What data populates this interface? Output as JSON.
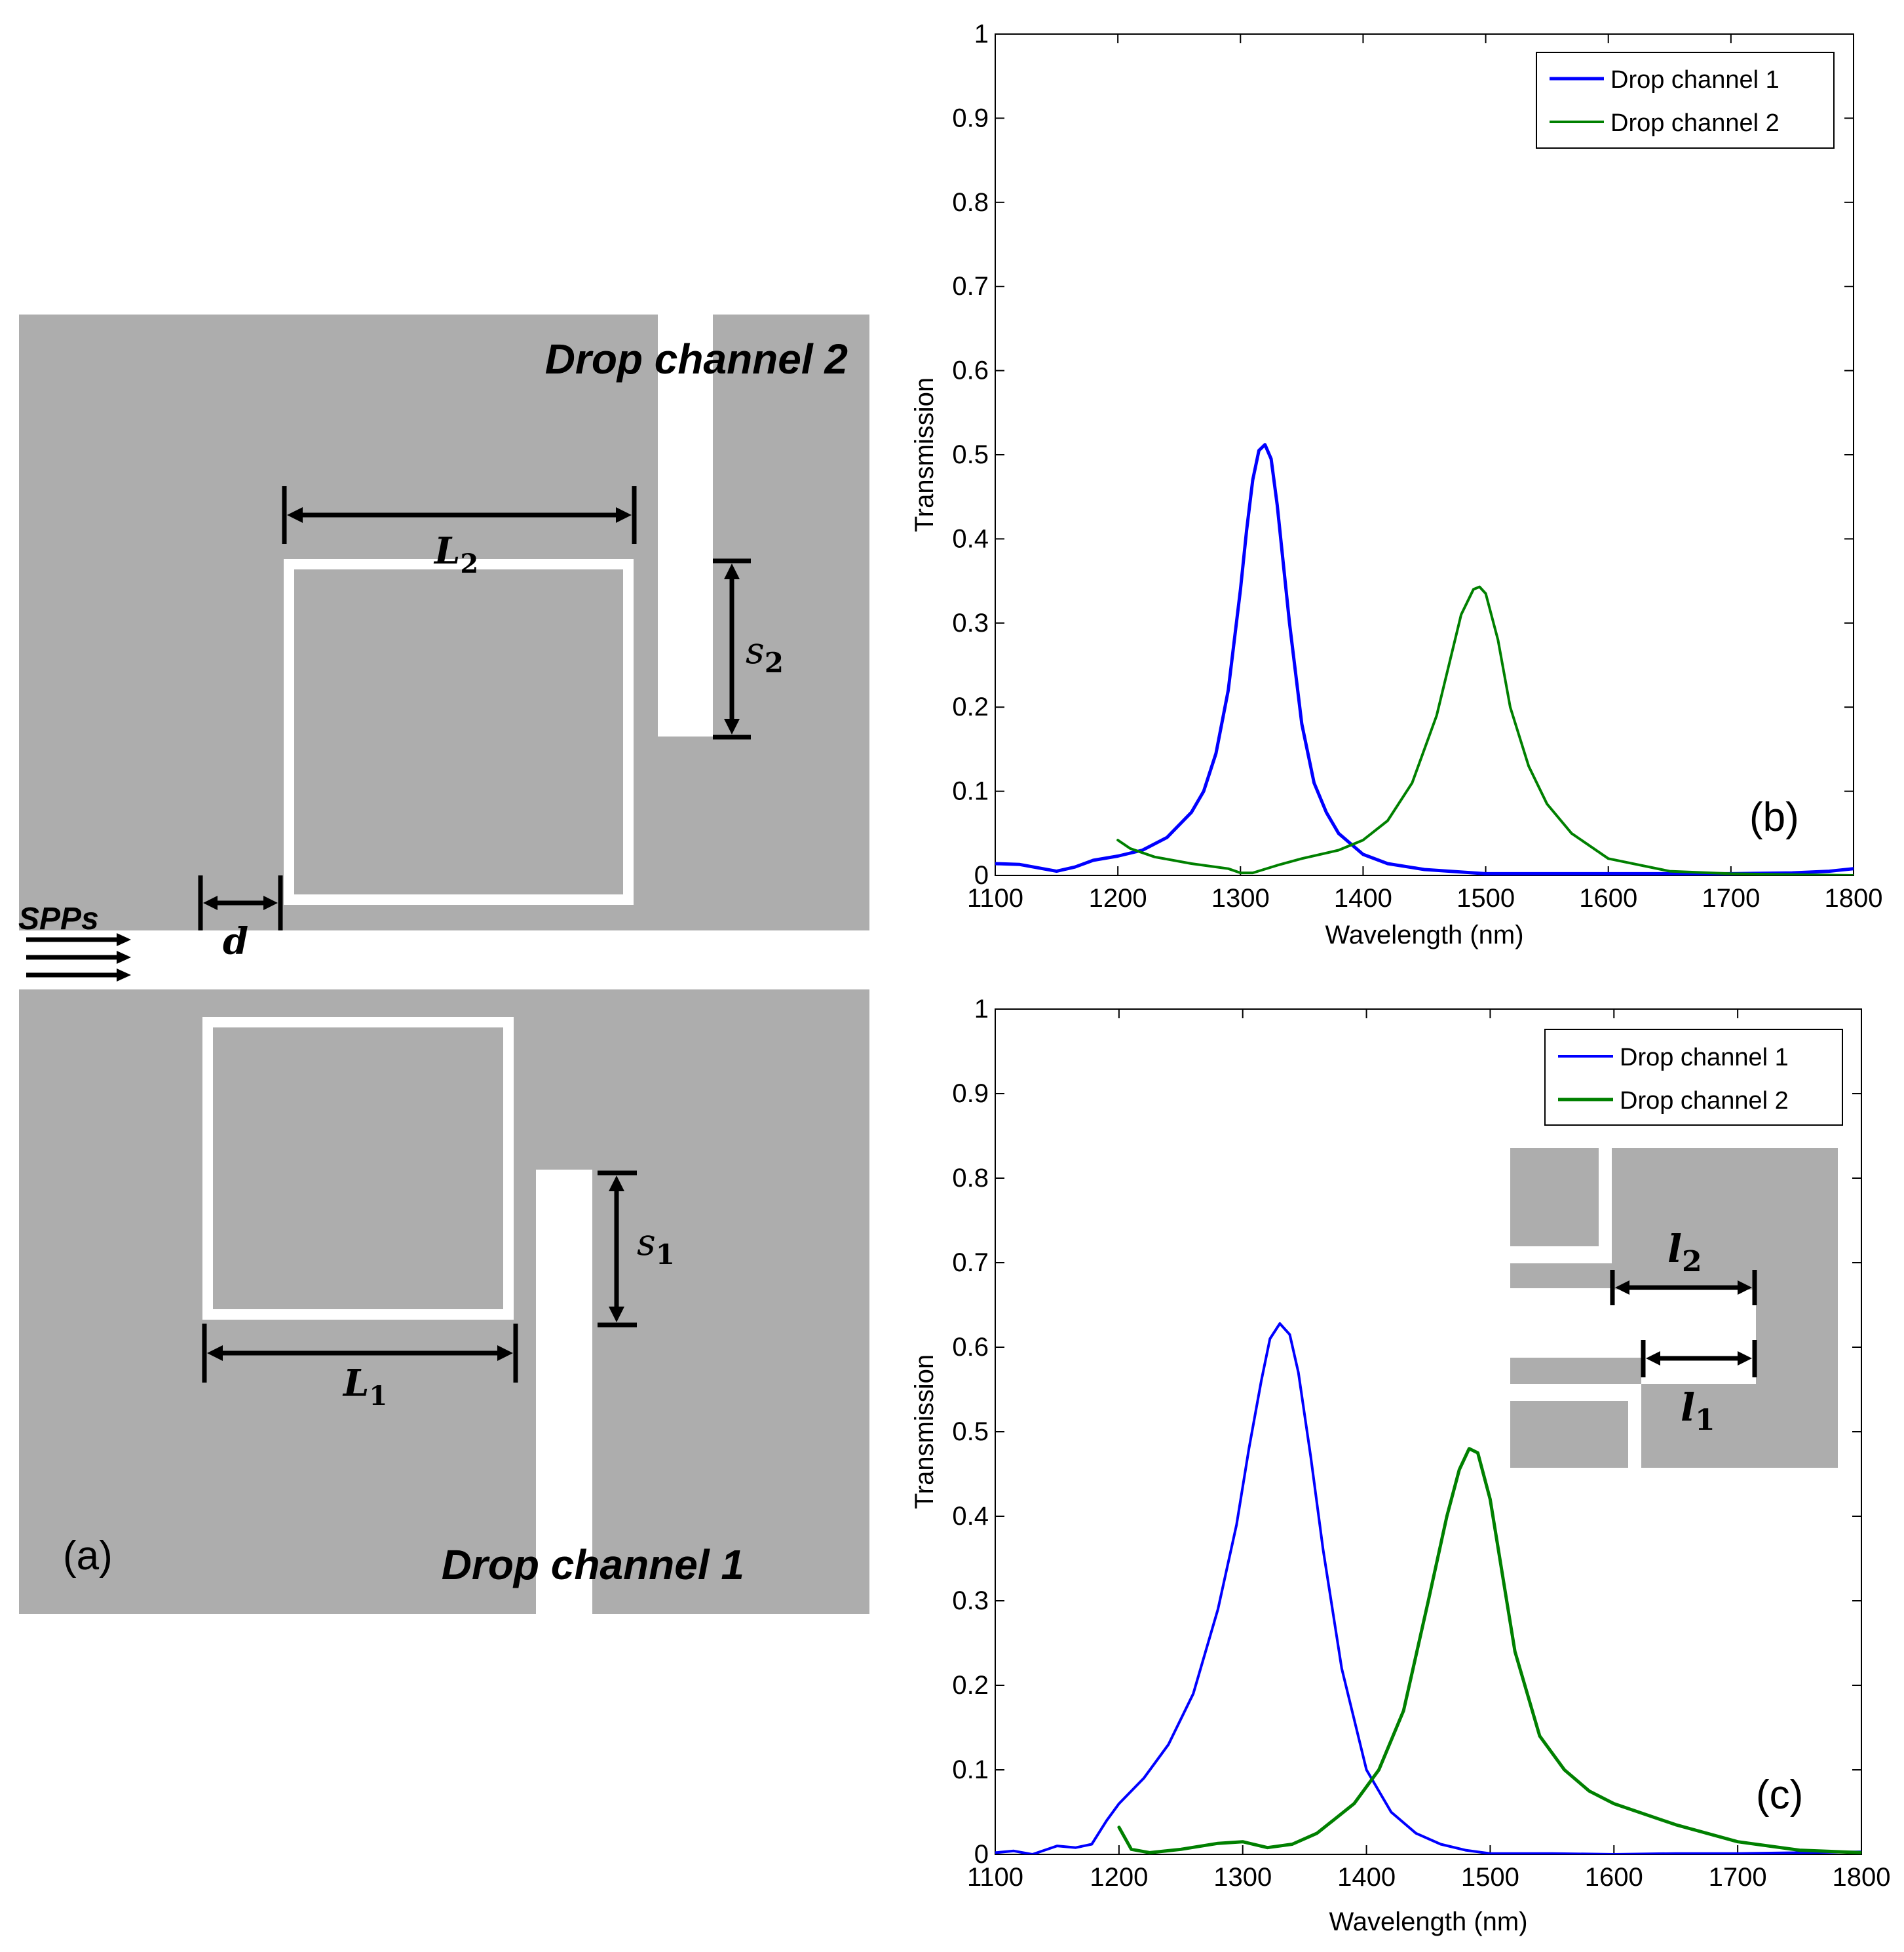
{
  "schematic": {
    "panel_label": "(a)",
    "drop_channel_2_label": "Drop channel 2",
    "drop_channel_1_label": "Drop channel 1",
    "spps_label": "SPPs",
    "L2": {
      "main": "L",
      "sub": "2"
    },
    "S2": {
      "main": "s",
      "sub": "2"
    },
    "L1": {
      "main": "L",
      "sub": "1"
    },
    "S1": {
      "main": "s",
      "sub": "1"
    },
    "d": "d",
    "colors": {
      "metal": "#adadad",
      "dielectric": "#ffffff",
      "dimension": "#000000"
    }
  },
  "inset": {
    "l2": {
      "main": "l",
      "sub": "2"
    },
    "l1": {
      "main": "l",
      "sub": "1"
    }
  },
  "chart_data": [
    {
      "type": "line",
      "panel_label": "(b)",
      "xlabel": "Wavelength (nm)",
      "ylabel": "Transmission",
      "xlim": [
        1100,
        1800
      ],
      "ylim": [
        0,
        1
      ],
      "xticks": [
        "1100",
        "1200",
        "1300",
        "1400",
        "1500",
        "1600",
        "1700",
        "1800"
      ],
      "yticks": [
        "0",
        "0.1",
        "0.2",
        "0.3",
        "0.4",
        "0.5",
        "0.6",
        "0.7",
        "0.8",
        "0.9",
        "1"
      ],
      "legend_position": "top-right",
      "series": [
        {
          "name": "Drop channel 1",
          "color": "#0000ff",
          "x": [
            1100,
            1120,
            1135,
            1150,
            1165,
            1180,
            1200,
            1220,
            1240,
            1260,
            1270,
            1280,
            1290,
            1300,
            1305,
            1310,
            1315,
            1320,
            1325,
            1330,
            1340,
            1350,
            1360,
            1370,
            1380,
            1400,
            1420,
            1450,
            1500,
            1550,
            1600,
            1650,
            1700,
            1750,
            1780,
            1800
          ],
          "y": [
            0.014,
            0.013,
            0.009,
            0.005,
            0.01,
            0.018,
            0.023,
            0.03,
            0.045,
            0.075,
            0.1,
            0.145,
            0.22,
            0.34,
            0.41,
            0.47,
            0.505,
            0.512,
            0.495,
            0.44,
            0.3,
            0.18,
            0.11,
            0.075,
            0.05,
            0.025,
            0.014,
            0.007,
            0.002,
            0.002,
            0.002,
            0.002,
            0.002,
            0.003,
            0.005,
            0.008
          ]
        },
        {
          "name": "Drop channel 2",
          "color": "#008000",
          "x": [
            1200,
            1210,
            1230,
            1260,
            1290,
            1300,
            1310,
            1330,
            1350,
            1380,
            1400,
            1420,
            1440,
            1460,
            1470,
            1480,
            1490,
            1495,
            1500,
            1510,
            1520,
            1535,
            1550,
            1570,
            1600,
            1650,
            1700,
            1750,
            1800
          ],
          "y": [
            0.042,
            0.032,
            0.022,
            0.014,
            0.008,
            0.003,
            0.003,
            0.012,
            0.02,
            0.03,
            0.042,
            0.065,
            0.11,
            0.19,
            0.25,
            0.31,
            0.34,
            0.343,
            0.335,
            0.28,
            0.2,
            0.13,
            0.085,
            0.05,
            0.02,
            0.005,
            0.002,
            0.001,
            0.0
          ]
        }
      ]
    },
    {
      "type": "line",
      "panel_label": "(c)",
      "xlabel": "Wavelength (nm)",
      "ylabel": "Transmission",
      "xlim": [
        1100,
        1800
      ],
      "ylim": [
        0,
        1
      ],
      "xticks": [
        "1100",
        "1200",
        "1300",
        "1400",
        "1500",
        "1600",
        "1700",
        "1800"
      ],
      "yticks": [
        "0",
        "0.1",
        "0.2",
        "0.3",
        "0.4",
        "0.5",
        "0.6",
        "0.7",
        "0.8",
        "0.9",
        "1"
      ],
      "legend_position": "top-right",
      "series": [
        {
          "name": "Drop channel 1",
          "color": "#0000ff",
          "x": [
            1100,
            1115,
            1130,
            1150,
            1165,
            1178,
            1190,
            1200,
            1220,
            1240,
            1260,
            1280,
            1295,
            1305,
            1315,
            1322,
            1330,
            1338,
            1345,
            1355,
            1365,
            1380,
            1400,
            1420,
            1440,
            1460,
            1480,
            1500,
            1550,
            1600,
            1650,
            1700,
            1750,
            1800
          ],
          "y": [
            0.002,
            0.004,
            0.0,
            0.01,
            0.008,
            0.012,
            0.04,
            0.06,
            0.09,
            0.13,
            0.19,
            0.29,
            0.39,
            0.48,
            0.56,
            0.61,
            0.628,
            0.615,
            0.57,
            0.47,
            0.36,
            0.22,
            0.1,
            0.05,
            0.025,
            0.012,
            0.005,
            0.001,
            0.001,
            0.0,
            0.001,
            0.001,
            0.002,
            0.003
          ]
        },
        {
          "name": "Drop channel 2",
          "color": "#008000",
          "x": [
            1200,
            1210,
            1225,
            1250,
            1280,
            1300,
            1320,
            1340,
            1360,
            1390,
            1410,
            1430,
            1450,
            1465,
            1475,
            1483,
            1490,
            1500,
            1510,
            1520,
            1540,
            1560,
            1580,
            1600,
            1650,
            1700,
            1750,
            1800
          ],
          "y": [
            0.032,
            0.006,
            0.002,
            0.006,
            0.013,
            0.015,
            0.008,
            0.012,
            0.025,
            0.06,
            0.1,
            0.17,
            0.3,
            0.4,
            0.455,
            0.48,
            0.475,
            0.42,
            0.33,
            0.24,
            0.14,
            0.1,
            0.075,
            0.06,
            0.035,
            0.015,
            0.005,
            0.002
          ]
        }
      ]
    }
  ]
}
